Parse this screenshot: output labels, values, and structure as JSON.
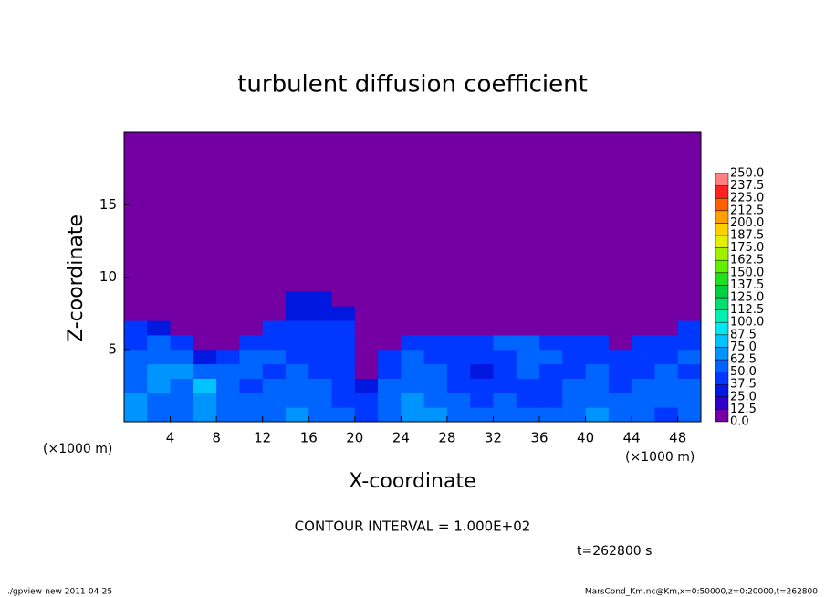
{
  "chart_data": {
    "type": "heatmap",
    "title": "turbulent diffusion coefficient",
    "xlabel": "X-coordinate",
    "ylabel": "Z-coordinate",
    "x_unit_label": "(×1000 m)",
    "y_unit_label": "(×1000 m)",
    "xlim": [
      0,
      50
    ],
    "ylim": [
      0,
      20
    ],
    "xticks": [
      4,
      8,
      12,
      16,
      20,
      24,
      28,
      32,
      36,
      40,
      44,
      48
    ],
    "yticks": [
      5,
      10,
      15
    ],
    "x": [
      1,
      3,
      5,
      7,
      9,
      11,
      13,
      15,
      17,
      19,
      21,
      23,
      25,
      27,
      29,
      31,
      33,
      35,
      37,
      39,
      41,
      43,
      45,
      47,
      49
    ],
    "y": [
      0.5,
      1.5,
      2.5,
      3.5,
      4.5,
      5.5,
      6.5,
      7.5,
      8.5
    ],
    "values": [
      [
        70,
        55,
        60,
        65,
        50,
        55,
        60,
        65,
        55,
        50,
        45,
        60,
        70,
        65,
        55,
        50,
        60,
        55,
        50,
        60,
        65,
        55,
        50,
        45,
        60
      ],
      [
        65,
        60,
        55,
        70,
        60,
        50,
        55,
        60,
        50,
        45,
        40,
        55,
        65,
        60,
        50,
        45,
        55,
        45,
        45,
        55,
        60,
        50,
        55,
        50,
        55
      ],
      [
        60,
        70,
        60,
        75,
        55,
        45,
        50,
        55,
        50,
        45,
        30,
        50,
        60,
        55,
        45,
        40,
        45,
        40,
        40,
        50,
        55,
        45,
        50,
        55,
        50
      ],
      [
        55,
        65,
        65,
        55,
        60,
        50,
        45,
        50,
        45,
        40,
        0,
        45,
        55,
        50,
        40,
        35,
        40,
        55,
        45,
        45,
        50,
        40,
        45,
        50,
        45
      ],
      [
        50,
        60,
        55,
        30,
        45,
        55,
        50,
        45,
        40,
        40,
        0,
        40,
        50,
        45,
        40,
        40,
        45,
        50,
        50,
        40,
        45,
        40,
        40,
        45,
        50
      ],
      [
        45,
        55,
        40,
        0,
        0,
        45,
        45,
        40,
        40,
        40,
        0,
        0,
        45,
        45,
        40,
        45,
        50,
        50,
        45,
        45,
        40,
        0,
        45,
        45,
        45
      ],
      [
        40,
        35,
        0,
        0,
        0,
        0,
        40,
        40,
        40,
        40,
        0,
        0,
        0,
        0,
        0,
        0,
        0,
        0,
        0,
        0,
        0,
        0,
        0,
        0,
        40
      ],
      [
        0,
        0,
        0,
        0,
        0,
        0,
        0,
        35,
        35,
        30,
        0,
        0,
        0,
        0,
        0,
        0,
        0,
        0,
        0,
        0,
        0,
        0,
        0,
        0,
        0
      ],
      [
        0,
        0,
        0,
        0,
        0,
        0,
        0,
        30,
        25,
        0,
        0,
        0,
        0,
        0,
        0,
        0,
        0,
        0,
        0,
        0,
        0,
        0,
        0,
        0,
        0
      ]
    ],
    "levels": [
      {
        "value": 0,
        "label": "0.0"
      },
      12.5,
      {
        "value": 25,
        "label": "25.0"
      },
      37.5,
      {
        "value": 50,
        "label": "50.0"
      },
      62.5,
      {
        "value": 75,
        "label": "75.0"
      },
      87.5,
      {
        "value": 100,
        "label": "100.0"
      },
      112.5,
      {
        "value": 125,
        "label": "125.0"
      },
      137.5,
      {
        "value": 150,
        "label": "150.0"
      },
      162.5,
      {
        "value": 175,
        "label": "175.0"
      },
      187.5,
      {
        "value": 200,
        "label": "200.0"
      },
      212.5,
      {
        "value": 225,
        "label": "225.0"
      },
      237.5,
      {
        "value": 250,
        "label": "250.0"
      }
    ],
    "colors": [
      "#7400a4",
      "#3000c8",
      "#0018e0",
      "#0038ff",
      "#0064ff",
      "#0094ff",
      "#00c4ff",
      "#00e8f0",
      "#00f0b0",
      "#00e070",
      "#00d040",
      "#20e020",
      "#60f000",
      "#a0f000",
      "#e0f000",
      "#ffd000",
      "#ffa000",
      "#ff6000",
      "#ff2020",
      "#ff8080"
    ],
    "contour_interval_label": "CONTOUR INTERVAL = 1.000E+02",
    "time_label": "t=262800 s",
    "footer_left": "./gpview-new  2011-04-25",
    "footer_right": "MarsCond_Km.nc@Km,x=0:50000,z=0:20000,t=262800"
  }
}
